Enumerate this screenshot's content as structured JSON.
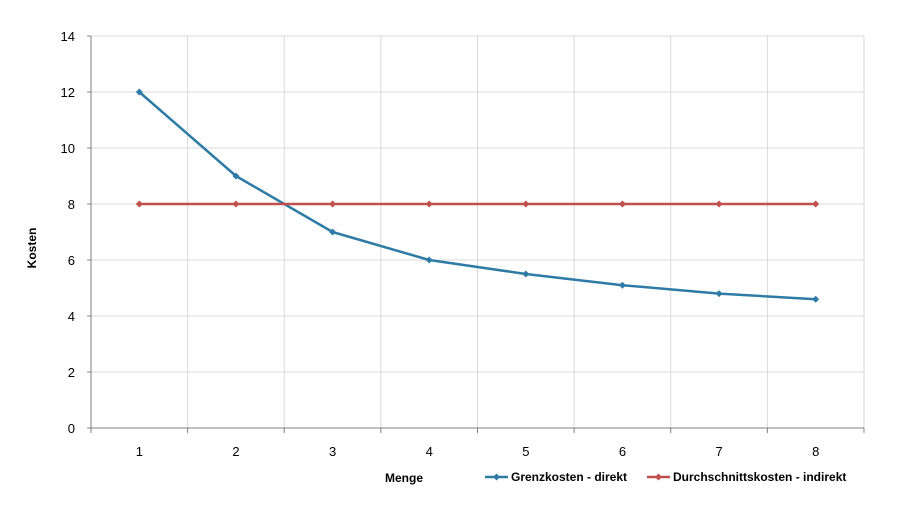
{
  "chart_data": {
    "type": "line",
    "title": "",
    "xlabel": "Menge",
    "ylabel": "Kosten",
    "x": [
      1,
      2,
      3,
      4,
      5,
      6,
      7,
      8
    ],
    "ylim": [
      0,
      14
    ],
    "yticks": [
      0,
      2,
      4,
      6,
      8,
      10,
      12,
      14
    ],
    "grid": true,
    "legend_position": "bottom-right",
    "series": [
      {
        "name": "Grenzkosten - direkt",
        "color": "#2E7BA6",
        "marker": "diamond",
        "values": [
          12,
          9,
          7,
          6,
          5.5,
          5.1,
          4.8,
          4.6
        ]
      },
      {
        "name": "Durchschnittskosten - indirekt",
        "color": "#C0504D",
        "marker": "diamond",
        "values": [
          8,
          8,
          8,
          8,
          8,
          8,
          8,
          8
        ]
      }
    ]
  }
}
